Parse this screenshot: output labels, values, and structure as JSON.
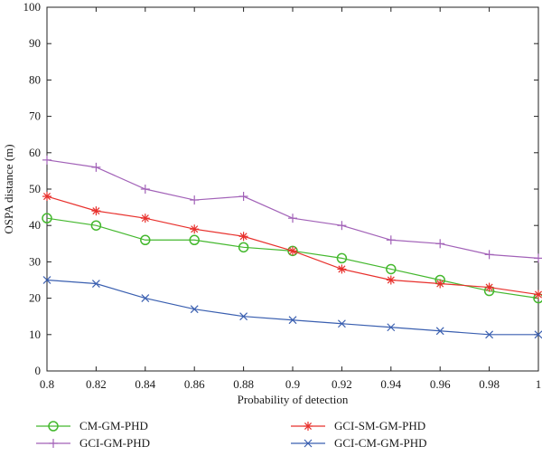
{
  "chart_data": {
    "type": "line",
    "xlabel": "Probability of detection",
    "ylabel": "OSPA distance (m)",
    "xlim": [
      0.8,
      1.0
    ],
    "ylim": [
      0,
      100
    ],
    "x": [
      0.8,
      0.82,
      0.84,
      0.86,
      0.88,
      0.9,
      0.92,
      0.94,
      0.96,
      0.98,
      1.0
    ],
    "x_tick_labels": [
      "0.8",
      "0.82",
      "0.84",
      "0.86",
      "0.88",
      "0.9",
      "0.92",
      "0.94",
      "0.96",
      "0.98",
      "1"
    ],
    "y_ticks": [
      0,
      10,
      20,
      30,
      40,
      50,
      60,
      70,
      80,
      90,
      100
    ],
    "y_tick_labels": [
      "0",
      "10",
      "20",
      "30",
      "40",
      "50",
      "60",
      "70",
      "80",
      "90",
      "100"
    ],
    "grid": false,
    "legend_position": "bottom",
    "series": [
      {
        "name": "CM-GM-PHD",
        "color": "#44b82e",
        "marker": "circle",
        "values": [
          42,
          40,
          36,
          36,
          34,
          33,
          31,
          28,
          25,
          22,
          20
        ]
      },
      {
        "name": "GCI-GM-PHD",
        "color": "#a262b8",
        "marker": "plus",
        "values": [
          58,
          56,
          50,
          47,
          48,
          42,
          40,
          36,
          35,
          32,
          31
        ]
      },
      {
        "name": "GCI-SM-GM-PHD",
        "color": "#e8302c",
        "marker": "asterisk",
        "values": [
          48,
          44,
          42,
          39,
          37,
          33,
          28,
          25,
          24,
          23,
          21
        ]
      },
      {
        "name": "GCI-CM-GM-PHD",
        "color": "#3a5fb0",
        "marker": "cross",
        "values": [
          25,
          24,
          20,
          17,
          15,
          14,
          13,
          12,
          11,
          10,
          10
        ]
      }
    ]
  }
}
